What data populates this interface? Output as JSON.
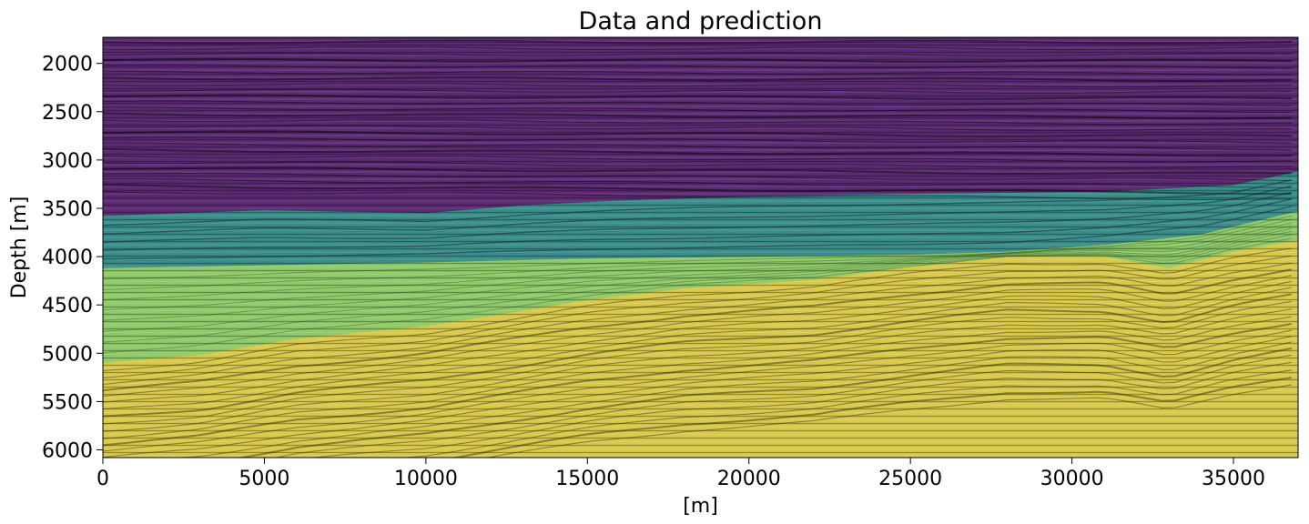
{
  "chart_data": {
    "type": "heatmap",
    "title": "Data and prediction",
    "xlabel": "[m]",
    "ylabel": "Depth [m]",
    "xlim": [
      0,
      37000
    ],
    "ylim": [
      6080,
      1730
    ],
    "y_inverted": true,
    "xticks": [
      0,
      5000,
      10000,
      15000,
      20000,
      25000,
      30000,
      35000
    ],
    "yticks": [
      2000,
      2500,
      3000,
      3500,
      4000,
      4500,
      5000,
      5500,
      6000
    ],
    "grid": false,
    "layers": [
      {
        "class": 0,
        "color": "#5b2a72",
        "base_depth": [
          [
            0,
            3580
          ],
          [
            5000,
            3520
          ],
          [
            10000,
            3550
          ],
          [
            13000,
            3470
          ],
          [
            16000,
            3420
          ],
          [
            20000,
            3380
          ],
          [
            25000,
            3350
          ],
          [
            28000,
            3340
          ],
          [
            31000,
            3330
          ],
          [
            35000,
            3260
          ],
          [
            37000,
            3120
          ]
        ]
      },
      {
        "class": 1,
        "color": "#3a8d8a",
        "base_depth": [
          [
            0,
            4120
          ],
          [
            5000,
            4090
          ],
          [
            10000,
            4060
          ],
          [
            15000,
            4020
          ],
          [
            20000,
            4000
          ],
          [
            25000,
            3980
          ],
          [
            28000,
            3950
          ],
          [
            31000,
            3880
          ],
          [
            34000,
            3770
          ],
          [
            37000,
            3530
          ]
        ]
      },
      {
        "class": 2,
        "color": "#8fcb6a",
        "base_depth": [
          [
            0,
            5100
          ],
          [
            3000,
            5020
          ],
          [
            6000,
            4850
          ],
          [
            10000,
            4720
          ],
          [
            13000,
            4560
          ],
          [
            15000,
            4450
          ],
          [
            18000,
            4330
          ],
          [
            22000,
            4240
          ],
          [
            25000,
            4110
          ],
          [
            28000,
            4000
          ],
          [
            31000,
            4000
          ],
          [
            33000,
            4120
          ],
          [
            35000,
            3950
          ],
          [
            37000,
            3830
          ]
        ]
      },
      {
        "class": 3,
        "color": "#d9c94e",
        "base_depth": [
          [
            0,
            6080
          ],
          [
            37000,
            6080
          ]
        ]
      }
    ]
  }
}
